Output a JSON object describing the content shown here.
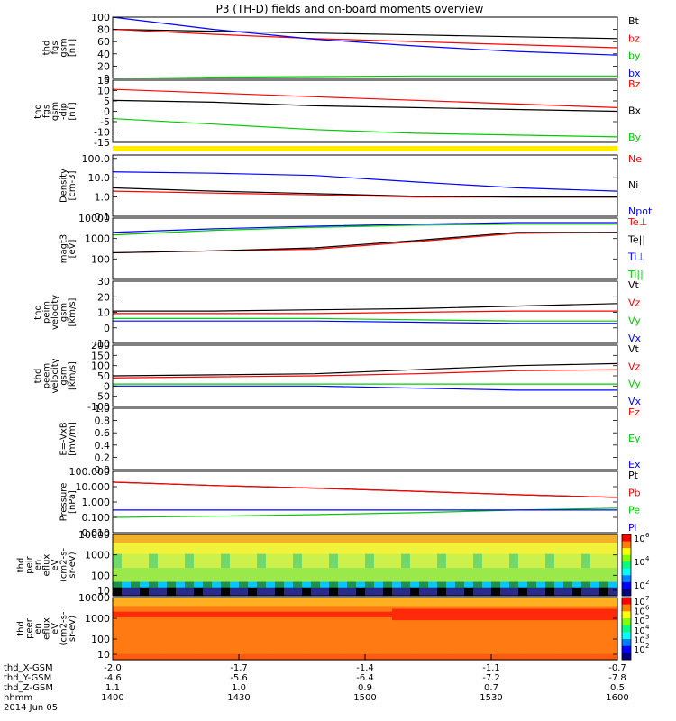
{
  "title": "P3 (TH-D) fields and on-board moments overview",
  "chart_data": [
    {
      "type": "line",
      "ylabel": [
        "thd",
        "fgs",
        "gsm",
        "[nT]"
      ],
      "ylim": [
        0,
        100
      ],
      "yticks": [
        "0",
        "20",
        "40",
        "60",
        "80",
        "100"
      ],
      "legend": [
        {
          "label": "Bt",
          "color": "#000000"
        },
        {
          "label": "bz",
          "color": "#ff0000"
        },
        {
          "label": "by",
          "color": "#00cc00"
        },
        {
          "label": "bx",
          "color": "#0000ff"
        }
      ],
      "series": [
        {
          "name": "Bt",
          "color": "#000000",
          "values": [
            80,
            77,
            74,
            71,
            68,
            65
          ]
        },
        {
          "name": "bz",
          "color": "#ff0000",
          "values": [
            80,
            72,
            65,
            60,
            55,
            50
          ]
        },
        {
          "name": "by",
          "color": "#00cc00",
          "values": [
            0,
            2,
            3,
            4,
            4,
            4
          ]
        },
        {
          "name": "bx",
          "color": "#0000ff",
          "values": [
            100,
            80,
            64,
            53,
            44,
            38
          ]
        }
      ]
    },
    {
      "type": "line",
      "ylabel": [
        "thd",
        "fgs",
        "gsm",
        "-dip",
        "[nT]"
      ],
      "ylim": [
        -17,
        17
      ],
      "yticks": [
        "-15",
        "-10",
        "-5",
        "0",
        "5",
        "10",
        "15"
      ],
      "legend": [
        {
          "label": "Bz",
          "color": "#ff0000"
        },
        {
          "label": "Bx",
          "color": "#000000"
        },
        {
          "label": "By",
          "color": "#00cc00"
        }
      ],
      "series": [
        {
          "name": "Bz",
          "color": "#ff0000",
          "values": [
            12,
            10,
            8,
            6,
            4,
            2
          ]
        },
        {
          "name": "Bx",
          "color": "#000000",
          "values": [
            6,
            5,
            3,
            2,
            1,
            0
          ]
        },
        {
          "name": "By",
          "color": "#00cc00",
          "values": [
            -4,
            -7,
            -10,
            -12,
            -13,
            -14
          ]
        }
      ]
    },
    {
      "type": "line",
      "ylabel": [
        "Density",
        "[cm-3]"
      ],
      "ylog": true,
      "ylim": [
        0.1,
        150
      ],
      "yticks": [
        "0.1",
        "1.0",
        "10.0",
        "100.0"
      ],
      "legend": [
        {
          "label": "Ne",
          "color": "#ff0000"
        },
        {
          "label": "Ni",
          "color": "#000000"
        },
        {
          "label": "Npot",
          "color": "#0000ff"
        }
      ],
      "series": [
        {
          "name": "Ne",
          "color": "#ff0000",
          "values": [
            2,
            1.6,
            1.3,
            1.0,
            1.0,
            1.0
          ]
        },
        {
          "name": "Ni",
          "color": "#000000",
          "values": [
            3,
            2,
            1.5,
            1.1,
            1.0,
            1.0
          ]
        },
        {
          "name": "Npot",
          "color": "#0000ff",
          "values": [
            20,
            17,
            13,
            6,
            3,
            2
          ]
        }
      ]
    },
    {
      "type": "line",
      "ylabel": [
        "magt3",
        "[eV]"
      ],
      "ylog": true,
      "ylim": [
        10,
        10000
      ],
      "yticks": [
        "100",
        "1000",
        "10000"
      ],
      "legend": [
        {
          "label": "Te⊥",
          "color": "#ff0000"
        },
        {
          "label": "Te||",
          "color": "#000000"
        },
        {
          "label": "Ti⊥",
          "color": "#0000ff"
        },
        {
          "label": "Ti||",
          "color": "#00cc00"
        }
      ],
      "series": [
        {
          "name": "Te⊥",
          "color": "#ff0000",
          "values": [
            200,
            250,
            300,
            700,
            1800,
            2000
          ]
        },
        {
          "name": "Te||",
          "color": "#000000",
          "values": [
            200,
            250,
            350,
            800,
            2000,
            2000
          ]
        },
        {
          "name": "Ti⊥",
          "color": "#0000ff",
          "values": [
            2000,
            3000,
            4000,
            5000,
            6000,
            6000
          ]
        },
        {
          "name": "Ti||",
          "color": "#00cc00",
          "values": [
            1500,
            2500,
            3500,
            4500,
            5000,
            5000
          ]
        }
      ]
    },
    {
      "type": "line",
      "ylabel": [
        "thd",
        "peim",
        "velocity",
        "gsm",
        "[km/s]"
      ],
      "ylim": [
        -20,
        30
      ],
      "yticks": [
        "-10",
        "0",
        "10",
        "20",
        "30"
      ],
      "legend": [
        {
          "label": "Vt",
          "color": "#000000"
        },
        {
          "label": "Vz",
          "color": "#ff0000"
        },
        {
          "label": "Vy",
          "color": "#00cc00"
        },
        {
          "label": "Vx",
          "color": "#0000ff"
        }
      ],
      "series": [
        {
          "name": "Vt",
          "color": "#000000",
          "values": [
            6,
            6,
            7,
            8,
            10,
            12
          ]
        },
        {
          "name": "Vz",
          "color": "#ff0000",
          "values": [
            4,
            4,
            4,
            5,
            6,
            6
          ]
        },
        {
          "name": "Vy",
          "color": "#00cc00",
          "values": [
            0,
            0,
            0,
            -1,
            -2,
            -2
          ]
        },
        {
          "name": "Vx",
          "color": "#0000ff",
          "values": [
            -2,
            -2,
            -2,
            -3,
            -4,
            -4
          ]
        }
      ]
    },
    {
      "type": "line",
      "ylabel": [
        "thd",
        "peem",
        "velocity",
        "gsm",
        "[km/s]"
      ],
      "ylim": [
        -100,
        200
      ],
      "yticks": [
        "-100",
        "-50",
        "0",
        "50",
        "100",
        "150",
        "200"
      ],
      "legend": [
        {
          "label": "Vt",
          "color": "#000000"
        },
        {
          "label": "Vz",
          "color": "#ff0000"
        },
        {
          "label": "Vy",
          "color": "#00cc00"
        },
        {
          "label": "Vx",
          "color": "#0000ff"
        }
      ],
      "series": [
        {
          "name": "Vt",
          "color": "#000000",
          "values": [
            50,
            55,
            60,
            80,
            100,
            110
          ]
        },
        {
          "name": "Vz",
          "color": "#ff0000",
          "values": [
            40,
            45,
            50,
            60,
            75,
            80
          ]
        },
        {
          "name": "Vy",
          "color": "#00cc00",
          "values": [
            10,
            10,
            10,
            10,
            10,
            10
          ]
        },
        {
          "name": "Vx",
          "color": "#0000ff",
          "values": [
            0,
            0,
            0,
            -10,
            -20,
            -20
          ]
        }
      ]
    },
    {
      "type": "line",
      "ylabel": [
        "E=-VxB",
        "[mV/m]"
      ],
      "ylim": [
        0,
        1.0
      ],
      "yticks": [
        "0.0",
        "0.2",
        "0.4",
        "0.6",
        "0.8",
        "1.0"
      ],
      "legend": [
        {
          "label": "Ez",
          "color": "#ff0000"
        },
        {
          "label": "Ey",
          "color": "#00cc00"
        },
        {
          "label": "Ex",
          "color": "#0000ff"
        }
      ],
      "series": []
    },
    {
      "type": "line",
      "ylabel": [
        "Pressure",
        "[nPa]"
      ],
      "ylog": true,
      "ylim": [
        0.01,
        100
      ],
      "yticks": [
        "0.010",
        "0.100",
        "1.000",
        "10.000",
        "100.000"
      ],
      "legend": [
        {
          "label": "Pt",
          "color": "#000000"
        },
        {
          "label": "Pb",
          "color": "#ff0000"
        },
        {
          "label": "Pe",
          "color": "#00cc00"
        },
        {
          "label": "Pi",
          "color": "#0000ff"
        }
      ],
      "series": [
        {
          "name": "Pt",
          "color": "#000000",
          "values": [
            20,
            12,
            8,
            5,
            3,
            2
          ]
        },
        {
          "name": "Pb",
          "color": "#ff0000",
          "values": [
            20,
            12,
            8,
            5,
            3,
            2
          ]
        },
        {
          "name": "Pe",
          "color": "#00cc00",
          "values": [
            0.1,
            0.12,
            0.15,
            0.2,
            0.3,
            0.4
          ]
        },
        {
          "name": "Pi",
          "color": "#0000ff",
          "values": [
            0.3,
            0.3,
            0.3,
            0.3,
            0.3,
            0.3
          ]
        }
      ]
    },
    {
      "type": "heatmap",
      "ylabel": [
        "thd",
        "peir",
        "en",
        "eflux",
        "eV",
        "(cm2-s-",
        "sr-eV)"
      ],
      "ylog": true,
      "ylim": [
        10,
        10000
      ],
      "yticks": [
        "10",
        "100",
        "1000",
        "10000"
      ],
      "colorbar_ticks": [
        "10",
        "10",
        "10"
      ],
      "colorbar_exps": [
        "2",
        "4",
        "6"
      ]
    },
    {
      "type": "heatmap",
      "ylabel": [
        "thd",
        "peer",
        "en",
        "eflux",
        "eV",
        "(cm2-s-",
        "sr-eV)"
      ],
      "ylog": true,
      "ylim": [
        10,
        10000
      ],
      "yticks": [
        "10",
        "100",
        "1000",
        "10000"
      ],
      "colorbar_ticks": [
        "10",
        "10",
        "10",
        "10",
        "10",
        "10"
      ],
      "colorbar_exps": [
        "2",
        "3",
        "4",
        "5",
        "6",
        "7"
      ]
    }
  ],
  "xaxis": {
    "rows": [
      {
        "label": "thd_X-GSM",
        "values": [
          "-2.0",
          "-1.7",
          "-1.4",
          "-1.1",
          "-0.7"
        ]
      },
      {
        "label": "thd_Y-GSM",
        "values": [
          "-4.6",
          "-5.6",
          "-6.4",
          "-7.2",
          "-7.8"
        ]
      },
      {
        "label": "thd_Z-GSM",
        "values": [
          "1.1",
          "1.0",
          "0.9",
          "0.7",
          "0.5"
        ]
      },
      {
        "label": "hhmm",
        "values": [
          "1400",
          "1430",
          "1500",
          "1530",
          "1600"
        ]
      }
    ],
    "date": "2014 Jun 05"
  }
}
